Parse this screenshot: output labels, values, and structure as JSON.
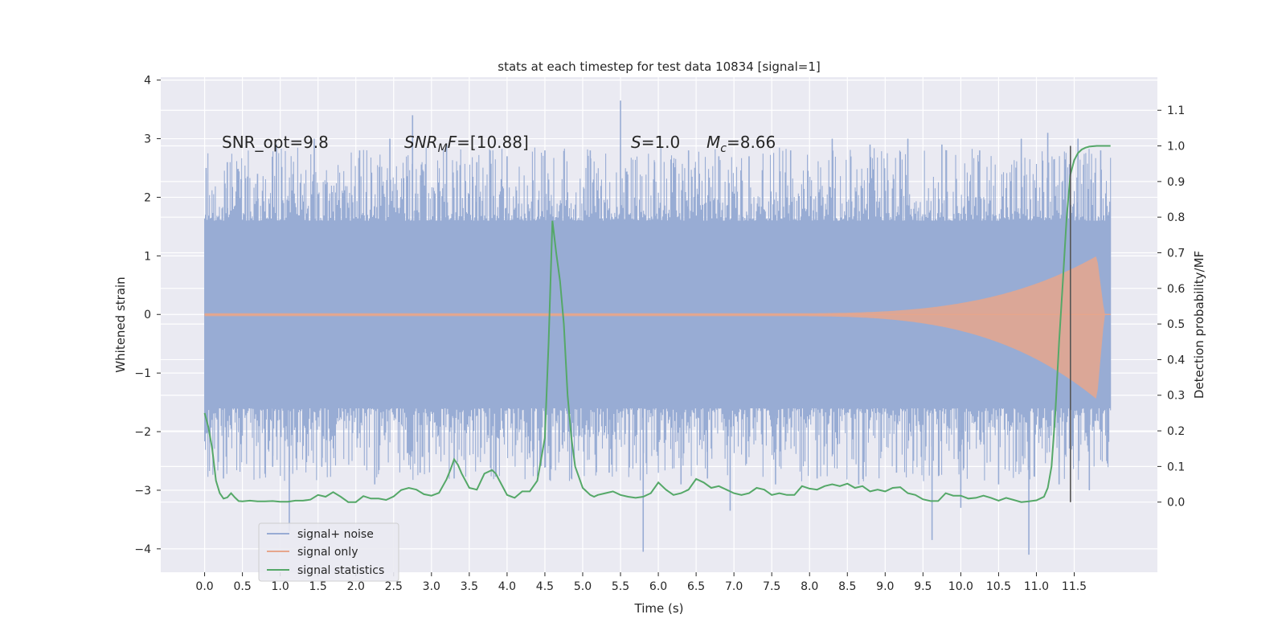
{
  "chart_data": {
    "type": "line",
    "title": "stats at each timestep for test data 10834 [signal=1]",
    "xlabel": "Time (s)",
    "ylabel_left": "Whitened strain",
    "ylabel_right": "Detection probability/MF",
    "xlim": [
      -0.58,
      12.6
    ],
    "ylim_left": [
      -4.4,
      4.05
    ],
    "ylim_right": [
      -0.197,
      1.193
    ],
    "x_ticks": [
      0.0,
      0.5,
      1.0,
      1.5,
      2.0,
      2.5,
      3.0,
      3.5,
      4.0,
      4.5,
      5.0,
      5.5,
      6.0,
      6.5,
      7.0,
      7.5,
      8.0,
      8.5,
      9.0,
      9.5,
      10.0,
      10.5,
      11.0,
      11.5
    ],
    "x_tick_labels": [
      "0.0",
      "0.5",
      "1.0",
      "1.5",
      "2.0",
      "2.5",
      "3.0",
      "3.5",
      "4.0",
      "4.5",
      "5.0",
      "5.5",
      "6.0",
      "6.5",
      "7.0",
      "7.5",
      "8.0",
      "8.5",
      "9.0",
      "9.5",
      "10.0",
      "10.5",
      "11.0",
      "11.5"
    ],
    "y_left_ticks": [
      4,
      3,
      2,
      1,
      0,
      -1,
      -2,
      -3,
      -4
    ],
    "y_left_tick_labels": [
      "4",
      "3",
      "2",
      "1",
      "0",
      "−1",
      "−2",
      "−3",
      "−4"
    ],
    "y_right_ticks": [
      1.1,
      1.0,
      0.9,
      0.8,
      0.7,
      0.6,
      0.5,
      0.4,
      0.3,
      0.2,
      0.1,
      0.0
    ],
    "y_right_tick_labels": [
      "1.1",
      "1.0",
      "0.9",
      "0.8",
      "0.7",
      "0.6",
      "0.5",
      "0.4",
      "0.3",
      "0.2",
      "0.1",
      "0.0"
    ],
    "grid": true,
    "legend_position": "lower-left",
    "annotations": {
      "snr_opt": "SNR_opt=9.8",
      "snr_mf_main": "SNR",
      "snr_mf_sub": "M",
      "snr_mf_f": "F",
      "snr_mf_value": "=[10.88]",
      "s_symbol": "S",
      "s_value": "=1.0",
      "mc_symbol": "M",
      "mc_sub": "c",
      "mc_value": "=8.66"
    },
    "series": [
      {
        "name": "signal+ noise",
        "color": "#98acd4",
        "axis": "left",
        "x_start": 0.0,
        "x_end": 11.98,
        "typical_envelope": [
          -1.6,
          1.6
        ],
        "spikes": [
          [
            0.02,
            2.5
          ],
          [
            0.3,
            2.6
          ],
          [
            0.7,
            2.4
          ],
          [
            0.95,
            2.9
          ],
          [
            1.45,
            3.0
          ],
          [
            2.05,
            2.8
          ],
          [
            2.45,
            3.0
          ],
          [
            2.75,
            3.4
          ],
          [
            3.2,
            2.9
          ],
          [
            3.6,
            2.6
          ],
          [
            4.0,
            2.7
          ],
          [
            4.5,
            2.8
          ],
          [
            5.1,
            2.8
          ],
          [
            5.5,
            3.65
          ],
          [
            5.95,
            2.6
          ],
          [
            6.4,
            2.8
          ],
          [
            6.8,
            2.7
          ],
          [
            7.2,
            2.7
          ],
          [
            7.75,
            2.8
          ],
          [
            8.3,
            3.0
          ],
          [
            8.8,
            2.9
          ],
          [
            9.3,
            3.0
          ],
          [
            9.75,
            2.9
          ],
          [
            10.25,
            2.8
          ],
          [
            10.8,
            3.0
          ],
          [
            11.15,
            3.1
          ],
          [
            11.55,
            3.0
          ],
          [
            11.85,
            2.8
          ],
          [
            0.25,
            -2.8
          ],
          [
            0.9,
            -2.6
          ],
          [
            1.12,
            -3.7
          ],
          [
            1.55,
            -2.6
          ],
          [
            2.25,
            -2.9
          ],
          [
            2.85,
            -2.7
          ],
          [
            3.3,
            -2.8
          ],
          [
            3.85,
            -2.7
          ],
          [
            4.35,
            -2.6
          ],
          [
            4.85,
            -2.8
          ],
          [
            5.35,
            -2.7
          ],
          [
            5.8,
            -4.05
          ],
          [
            6.3,
            -2.9
          ],
          [
            6.65,
            -2.8
          ],
          [
            6.95,
            -3.35
          ],
          [
            7.55,
            -2.9
          ],
          [
            8.1,
            -2.8
          ],
          [
            8.65,
            -2.9
          ],
          [
            9.15,
            -2.7
          ],
          [
            9.62,
            -3.85
          ],
          [
            10.0,
            -3.3
          ],
          [
            10.5,
            -2.9
          ],
          [
            10.9,
            -4.1
          ],
          [
            11.3,
            -2.9
          ],
          [
            11.7,
            -3.0
          ],
          [
            11.93,
            -2.5
          ]
        ]
      },
      {
        "name": "signal only",
        "color": "#e6a68c",
        "axis": "left",
        "chirp_start": 7.5,
        "chirp_merger": 11.8,
        "peak_amplitude_upper": 1.0,
        "peak_amplitude_lower": -1.45,
        "x_end": 11.98
      },
      {
        "name": "signal statistics",
        "color": "#55a868",
        "axis": "right",
        "x": [
          0.0,
          0.05,
          0.1,
          0.15,
          0.2,
          0.25,
          0.3,
          0.35,
          0.4,
          0.45,
          0.5,
          0.6,
          0.7,
          0.8,
          0.9,
          1.0,
          1.1,
          1.2,
          1.3,
          1.4,
          1.5,
          1.6,
          1.7,
          1.8,
          1.9,
          2.0,
          2.1,
          2.2,
          2.3,
          2.4,
          2.5,
          2.6,
          2.7,
          2.8,
          2.9,
          3.0,
          3.1,
          3.2,
          3.25,
          3.3,
          3.35,
          3.4,
          3.5,
          3.6,
          3.7,
          3.8,
          3.85,
          3.9,
          4.0,
          4.1,
          4.2,
          4.3,
          4.4,
          4.5,
          4.55,
          4.6,
          4.65,
          4.7,
          4.75,
          4.8,
          4.85,
          4.9,
          5.0,
          5.05,
          5.1,
          5.15,
          5.2,
          5.3,
          5.4,
          5.5,
          5.6,
          5.7,
          5.8,
          5.9,
          6.0,
          6.1,
          6.2,
          6.3,
          6.4,
          6.5,
          6.6,
          6.7,
          6.8,
          6.9,
          7.0,
          7.1,
          7.2,
          7.3,
          7.4,
          7.5,
          7.6,
          7.7,
          7.8,
          7.9,
          8.0,
          8.1,
          8.2,
          8.3,
          8.4,
          8.5,
          8.6,
          8.7,
          8.8,
          8.9,
          9.0,
          9.1,
          9.2,
          9.3,
          9.4,
          9.5,
          9.6,
          9.7,
          9.8,
          9.9,
          10.0,
          10.1,
          10.2,
          10.3,
          10.4,
          10.5,
          10.6,
          10.7,
          10.8,
          10.9,
          11.0,
          11.1,
          11.15,
          11.2,
          11.25,
          11.3,
          11.35,
          11.4,
          11.45,
          11.5,
          11.55,
          11.6,
          11.65,
          11.7,
          11.8,
          11.9,
          11.98
        ],
        "values": [
          0.25,
          0.21,
          0.15,
          0.06,
          0.025,
          0.01,
          0.013,
          0.025,
          0.013,
          0.003,
          0.002,
          0.004,
          0.002,
          0.002,
          0.003,
          0.001,
          0.001,
          0.004,
          0.004,
          0.007,
          0.02,
          0.015,
          0.028,
          0.015,
          0.0,
          0.0,
          0.017,
          0.01,
          0.01,
          0.006,
          0.016,
          0.034,
          0.04,
          0.035,
          0.022,
          0.018,
          0.026,
          0.064,
          0.09,
          0.12,
          0.105,
          0.08,
          0.04,
          0.035,
          0.08,
          0.09,
          0.08,
          0.06,
          0.02,
          0.012,
          0.03,
          0.03,
          0.06,
          0.18,
          0.45,
          0.79,
          0.7,
          0.62,
          0.5,
          0.3,
          0.18,
          0.1,
          0.04,
          0.03,
          0.02,
          0.015,
          0.02,
          0.025,
          0.03,
          0.02,
          0.015,
          0.012,
          0.015,
          0.025,
          0.055,
          0.035,
          0.02,
          0.025,
          0.035,
          0.065,
          0.055,
          0.04,
          0.045,
          0.035,
          0.025,
          0.02,
          0.025,
          0.04,
          0.035,
          0.02,
          0.025,
          0.02,
          0.02,
          0.045,
          0.038,
          0.035,
          0.045,
          0.05,
          0.045,
          0.052,
          0.04,
          0.045,
          0.03,
          0.035,
          0.03,
          0.04,
          0.042,
          0.025,
          0.02,
          0.008,
          0.003,
          0.003,
          0.025,
          0.018,
          0.018,
          0.01,
          0.012,
          0.018,
          0.012,
          0.004,
          0.012,
          0.006,
          0.0,
          0.002,
          0.005,
          0.015,
          0.04,
          0.1,
          0.25,
          0.45,
          0.62,
          0.8,
          0.92,
          0.96,
          0.98,
          0.99,
          0.995,
          0.998,
          1.0,
          1.0,
          1.0
        ]
      },
      {
        "name": "",
        "color": "#555555",
        "axis": "right",
        "type": "vertical-line",
        "x": 11.45,
        "y_range": [
          0.0,
          1.0
        ]
      }
    ]
  }
}
